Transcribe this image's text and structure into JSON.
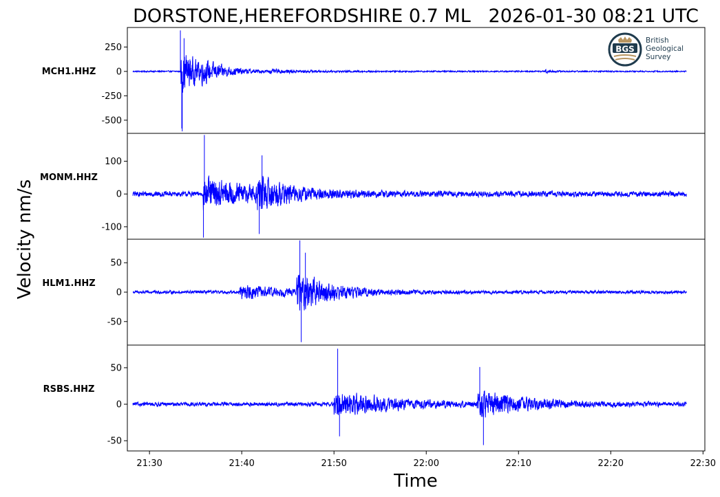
{
  "chart_data": {
    "type": "line",
    "title": "DORSTONE,HEREFORDSHIRE 0.7 ML   2026-01-30 08:21 UTC",
    "xlabel": "Time",
    "ylabel": "Velocity nm/s",
    "x_ticks": [
      "21:30",
      "21:40",
      "21:50",
      "22:00",
      "22:10",
      "22:20",
      "22:30"
    ],
    "x_tick_minutes": [
      0,
      10,
      20,
      30,
      40,
      50,
      60
    ],
    "xlim_minutes": [
      -2.4,
      60.2
    ],
    "trace_range_minutes": [
      -1.8,
      58.2
    ],
    "series_color": "#0000ff",
    "grid": false,
    "logo": {
      "text": "BGS",
      "lines": [
        "British",
        "Geological",
        "Survey"
      ]
    },
    "panels": [
      {
        "name": "MCH1.HHZ",
        "ylim": [
          -635,
          450
        ],
        "yticks": [
          250,
          0,
          -250,
          -500
        ],
        "ytick_labels": [
          "250",
          "0",
          "-250",
          "-500"
        ],
        "noise": 8,
        "bursts": [
          {
            "t": 3.4,
            "amp": 270,
            "decay": 2.2
          },
          {
            "t": 5.6,
            "amp": 55,
            "decay": 3.5
          },
          {
            "t": 13.0,
            "amp": 10,
            "decay": 6.0
          },
          {
            "t": 42.8,
            "amp": 14,
            "decay": 1.0
          }
        ],
        "peaks": [
          {
            "t": 3.35,
            "value": 420
          },
          {
            "t": 3.55,
            "value": -615
          },
          {
            "t": 3.75,
            "value": 340
          },
          {
            "t": 3.5,
            "value": -585
          }
        ]
      },
      {
        "name": "MONM.HHZ",
        "ylim": [
          -138,
          185
        ],
        "yticks": [
          100,
          0,
          -100
        ],
        "ytick_labels": [
          "100",
          "0",
          "-100"
        ],
        "noise": 9,
        "bursts": [
          {
            "t": 5.8,
            "amp": 50,
            "decay": 7.0
          },
          {
            "t": 11.7,
            "amp": 45,
            "decay": 2.5
          }
        ],
        "peaks": [
          {
            "t": 5.95,
            "value": 180
          },
          {
            "t": 5.85,
            "value": -133
          },
          {
            "t": 12.2,
            "value": 118
          },
          {
            "t": 11.9,
            "value": -122
          }
        ]
      },
      {
        "name": "HLM1.HHZ",
        "ylim": [
          -90,
          90
        ],
        "yticks": [
          50,
          0,
          -50
        ],
        "ytick_labels": [
          "50",
          "0",
          "-50"
        ],
        "noise": 3,
        "bursts": [
          {
            "t": 9.8,
            "amp": 13,
            "decay": 5.0
          },
          {
            "t": 15.9,
            "amp": 32,
            "decay": 4.0
          }
        ],
        "peaks": [
          {
            "t": 16.3,
            "value": 88
          },
          {
            "t": 16.45,
            "value": -85
          },
          {
            "t": 16.9,
            "value": 67
          }
        ]
      },
      {
        "name": "RSBS.HHZ",
        "ylim": [
          -64,
          81
        ],
        "yticks": [
          50,
          0,
          -50
        ],
        "ytick_labels": [
          "50",
          "0",
          "-50"
        ],
        "noise": 3,
        "bursts": [
          {
            "t": 20.0,
            "amp": 20,
            "decay": 6.0
          },
          {
            "t": 35.5,
            "amp": 20,
            "decay": 5.0
          }
        ],
        "peaks": [
          {
            "t": 20.4,
            "value": 76
          },
          {
            "t": 20.6,
            "value": -44
          },
          {
            "t": 35.8,
            "value": 51
          },
          {
            "t": 36.2,
            "value": -56
          }
        ]
      }
    ]
  }
}
